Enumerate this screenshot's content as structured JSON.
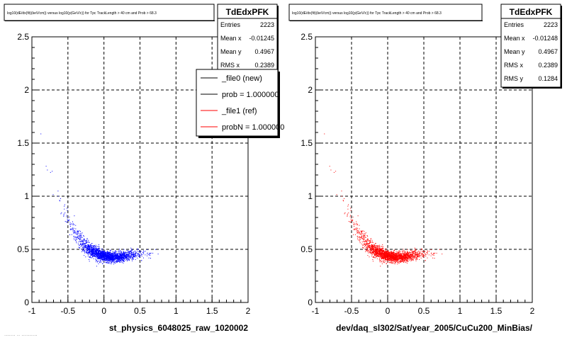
{
  "chart_data": [
    {
      "type": "scatter",
      "title": "log10(dE/dx(fit)(keV/cm)) versus log10(p(GeV/c)) for Tpc TrackLength > 40 cm and Prob > 68.3",
      "xlabel": "st_physics_6048025_raw_1020002",
      "ylabel": "",
      "xlim": [
        -1,
        2
      ],
      "ylim": [
        0,
        2.5
      ],
      "xticks": [
        "-1",
        "-0.5",
        "0",
        "0.5",
        "1",
        "1.5",
        "2"
      ],
      "yticks": [
        "0",
        "0.5",
        "1",
        "1.5",
        "2",
        "2.5"
      ],
      "grid": true,
      "point_color": "#0000ff",
      "band": [
        {
          "x": -0.82,
          "y": 1.3
        },
        {
          "x": -0.7,
          "y": 1.08
        },
        {
          "x": -0.6,
          "y": 0.92
        },
        {
          "x": -0.5,
          "y": 0.78
        },
        {
          "x": -0.4,
          "y": 0.65
        },
        {
          "x": -0.3,
          "y": 0.56
        },
        {
          "x": -0.2,
          "y": 0.5
        },
        {
          "x": -0.1,
          "y": 0.46
        },
        {
          "x": 0.0,
          "y": 0.44
        },
        {
          "x": 0.1,
          "y": 0.43
        },
        {
          "x": 0.2,
          "y": 0.43
        },
        {
          "x": 0.3,
          "y": 0.44
        },
        {
          "x": 0.4,
          "y": 0.45
        },
        {
          "x": 0.5,
          "y": 0.46
        },
        {
          "x": 0.6,
          "y": 0.47
        },
        {
          "x": 0.8,
          "y": 0.49
        }
      ],
      "stats": {
        "name": "TdEdxPFK",
        "rows": [
          {
            "label": "Entries",
            "value": "2223"
          },
          {
            "label": "Mean x",
            "value": "-0.01245"
          },
          {
            "label": "Mean y",
            "value": "0.4967"
          },
          {
            "label": "RMS x",
            "value": "0.2389"
          }
        ]
      },
      "legend": [
        {
          "label": "_file0 (new)",
          "color": "#000000"
        },
        {
          "label": "prob = 1.000000",
          "color": "#000000"
        },
        {
          "label": "_file1 (ref)",
          "color": "#ff0000"
        },
        {
          "label": "probN = 1.000000",
          "color": "#ff0000"
        }
      ],
      "footer_text": "....... .. .........."
    },
    {
      "type": "scatter",
      "title": "log10(dE/dx(fit)(keV/cm)) versus log10(p(GeV/c)) for Tpc TrackLength > 40 cm and Prob > 68.3",
      "xlabel": "dev/daq_sl302/Sat/year_2005/CuCu200_MinBias/",
      "ylabel": "",
      "xlim": [
        -1,
        2
      ],
      "ylim": [
        0,
        2.5
      ],
      "xticks": [
        "-1",
        "-0.5",
        "0",
        "0.5",
        "1",
        "1.5",
        "2"
      ],
      "yticks": [
        "0",
        "0.5",
        "1",
        "1.5",
        "2",
        "2.5"
      ],
      "grid": true,
      "point_color": "#ff0000",
      "band": [
        {
          "x": -0.82,
          "y": 1.3
        },
        {
          "x": -0.7,
          "y": 1.08
        },
        {
          "x": -0.6,
          "y": 0.92
        },
        {
          "x": -0.5,
          "y": 0.78
        },
        {
          "x": -0.4,
          "y": 0.65
        },
        {
          "x": -0.3,
          "y": 0.56
        },
        {
          "x": -0.2,
          "y": 0.5
        },
        {
          "x": -0.1,
          "y": 0.46
        },
        {
          "x": 0.0,
          "y": 0.44
        },
        {
          "x": 0.1,
          "y": 0.43
        },
        {
          "x": 0.2,
          "y": 0.43
        },
        {
          "x": 0.3,
          "y": 0.44
        },
        {
          "x": 0.4,
          "y": 0.45
        },
        {
          "x": 0.5,
          "y": 0.46
        },
        {
          "x": 0.6,
          "y": 0.47
        },
        {
          "x": 0.8,
          "y": 0.49
        }
      ],
      "stats": {
        "name": "TdEdxPFK",
        "rows": [
          {
            "label": "Entries",
            "value": "2223"
          },
          {
            "label": "Mean x",
            "value": "-0.01248"
          },
          {
            "label": "Mean y",
            "value": "0.4967"
          },
          {
            "label": "RMS x",
            "value": "0.2389"
          },
          {
            "label": "RMS y",
            "value": "0.1284"
          }
        ]
      }
    }
  ]
}
